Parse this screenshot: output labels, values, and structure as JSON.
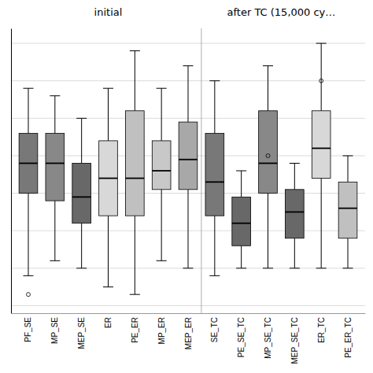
{
  "chart_data": {
    "type": "box",
    "annotations": [
      "initial",
      "after TC (15,000 cy…"
    ],
    "categories": [
      "PF_SE",
      "MP_SE",
      "MEP_SE",
      "ER",
      "PE_ER",
      "MP_ER",
      "MEP_ER",
      "SE_TC",
      "PE_SE_TC",
      "MP_SE_TC",
      "MEP_SE_TC",
      "ER_TC",
      "PE_ER_TC"
    ],
    "boxes": [
      {
        "whislo": 8,
        "q1": 30,
        "med": 38,
        "q3": 46,
        "whishi": 58,
        "fliers": [
          3
        ]
      },
      {
        "whislo": 12,
        "q1": 28,
        "med": 38,
        "q3": 46,
        "whishi": 56,
        "fliers": []
      },
      {
        "whislo": 10,
        "q1": 22,
        "med": 29,
        "q3": 38,
        "whishi": 50,
        "fliers": []
      },
      {
        "whislo": 5,
        "q1": 24,
        "med": 34,
        "q3": 44,
        "whishi": 58,
        "fliers": []
      },
      {
        "whislo": 3,
        "q1": 24,
        "med": 34,
        "q3": 52,
        "whishi": 68,
        "fliers": []
      },
      {
        "whislo": 12,
        "q1": 31,
        "med": 36,
        "q3": 44,
        "whishi": 58,
        "fliers": []
      },
      {
        "whislo": 10,
        "q1": 31,
        "med": 39,
        "q3": 49,
        "whishi": 64,
        "fliers": []
      },
      {
        "whislo": 8,
        "q1": 24,
        "med": 33,
        "q3": 46,
        "whishi": 60,
        "fliers": []
      },
      {
        "whislo": 10,
        "q1": 16,
        "med": 22,
        "q3": 29,
        "whishi": 36,
        "fliers": []
      },
      {
        "whislo": 10,
        "q1": 30,
        "med": 38,
        "q3": 52,
        "whishi": 64,
        "fliers": [
          40
        ]
      },
      {
        "whislo": 10,
        "q1": 18,
        "med": 25,
        "q3": 31,
        "whishi": 38,
        "fliers": []
      },
      {
        "whislo": 10,
        "q1": 34,
        "med": 42,
        "q3": 52,
        "whishi": 70,
        "fliers": [
          60
        ]
      },
      {
        "whislo": 10,
        "q1": 18,
        "med": 26,
        "q3": 33,
        "whishi": 40,
        "fliers": []
      }
    ],
    "colors": [
      "#787878",
      "#888888",
      "#686868",
      "#d8d8d8",
      "#c0c0c0",
      "#c8c8c8",
      "#a8a8a8",
      "#787878",
      "#686868",
      "#888888",
      "#686868",
      "#d8d8d8",
      "#c0c0c0"
    ],
    "ylim": [
      -2,
      74
    ],
    "yticks": [
      0,
      10,
      20,
      30,
      40,
      50,
      60,
      70
    ],
    "grid": true,
    "tick_labels": "x"
  }
}
